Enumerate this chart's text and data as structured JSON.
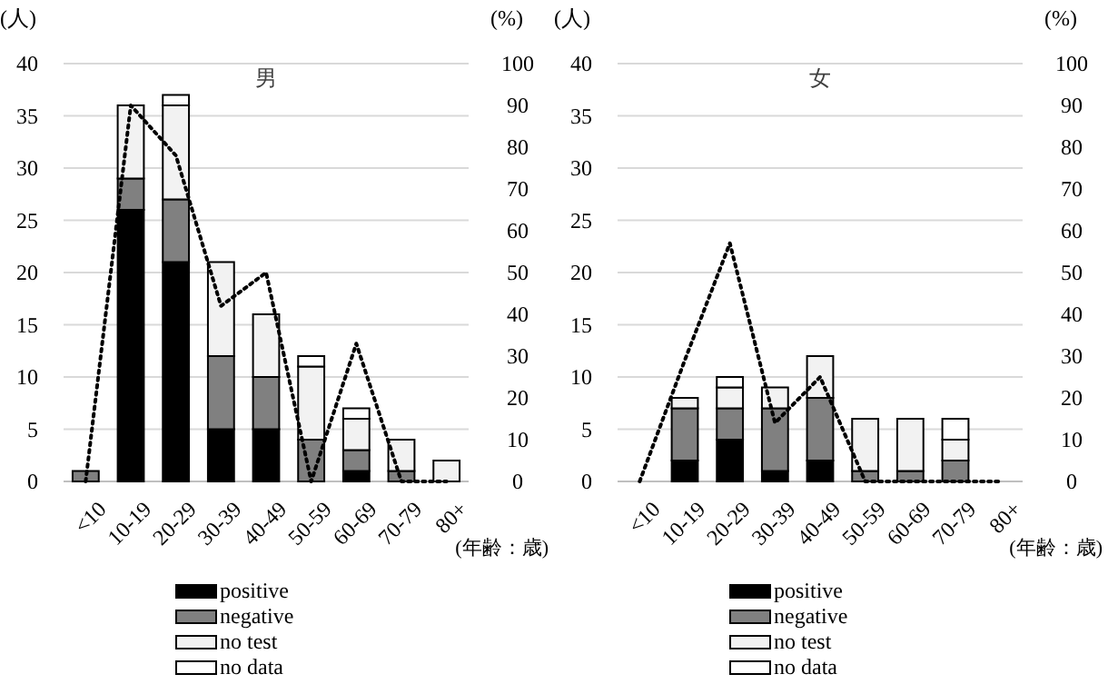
{
  "chart_data": [
    {
      "type": "bar",
      "stacked": true,
      "title": "男",
      "xlabel": "(年齢：歳)",
      "ylabel": "(人)",
      "y2label": "(%)",
      "categories": [
        "<10",
        "10-19",
        "20-29",
        "30-39",
        "40-49",
        "50-59",
        "60-69",
        "70-79",
        "80+"
      ],
      "series": [
        {
          "name": "positive",
          "color": "#000000",
          "values": [
            0,
            26,
            21,
            5,
            5,
            0,
            1,
            0,
            0
          ]
        },
        {
          "name": "negative",
          "color": "#808080",
          "values": [
            1,
            3,
            6,
            7,
            5,
            4,
            2,
            1,
            0
          ]
        },
        {
          "name": "no test",
          "color": "#f2f2f2",
          "values": [
            0,
            7,
            9,
            9,
            6,
            7,
            3,
            3,
            2
          ]
        },
        {
          "name": "no data",
          "color": "#ffffff",
          "values": [
            0,
            0,
            1,
            0,
            0,
            1,
            1,
            0,
            0
          ]
        },
        {
          "type": "line",
          "axis": "y2",
          "color": "#000000",
          "line_style": "dotted",
          "values": [
            0,
            90,
            78,
            42,
            50,
            0,
            33,
            0,
            0
          ]
        }
      ],
      "ylim": [
        0,
        40
      ],
      "yticks": [
        0,
        5,
        10,
        15,
        20,
        25,
        30,
        35,
        40
      ],
      "y2lim": [
        0,
        100
      ],
      "y2ticks": [
        0,
        10,
        20,
        30,
        40,
        50,
        60,
        70,
        80,
        90,
        100
      ],
      "grid": "y",
      "legend": "bottom",
      "marker": "none"
    },
    {
      "type": "bar",
      "stacked": true,
      "title": "女",
      "xlabel": "(年齢：歳)",
      "ylabel": "(人)",
      "y2label": "(%)",
      "categories": [
        "<10",
        "10-19",
        "20-29",
        "30-39",
        "40-49",
        "50-59",
        "60-69",
        "70-79",
        "80+"
      ],
      "series": [
        {
          "name": "positive",
          "color": "#000000",
          "values": [
            0,
            2,
            4,
            1,
            2,
            0,
            0,
            0,
            0
          ]
        },
        {
          "name": "negative",
          "color": "#808080",
          "values": [
            0,
            5,
            3,
            6,
            6,
            1,
            1,
            2,
            0
          ]
        },
        {
          "name": "no test",
          "color": "#f2f2f2",
          "values": [
            0,
            1,
            2,
            2,
            4,
            5,
            5,
            2,
            0
          ]
        },
        {
          "name": "no data",
          "color": "#ffffff",
          "values": [
            0,
            0,
            1,
            0,
            0,
            0,
            0,
            2,
            0
          ]
        },
        {
          "type": "line",
          "axis": "y2",
          "color": "#000000",
          "line_style": "dotted",
          "values": [
            0,
            29,
            57,
            14,
            25,
            0,
            0,
            0,
            0
          ]
        }
      ],
      "ylim": [
        0,
        40
      ],
      "yticks": [
        0,
        5,
        10,
        15,
        20,
        25,
        30,
        35,
        40
      ],
      "y2lim": [
        0,
        100
      ],
      "y2ticks": [
        0,
        10,
        20,
        30,
        40,
        50,
        60,
        70,
        80,
        90,
        100
      ],
      "grid": "y",
      "legend": "bottom",
      "marker": "none"
    }
  ]
}
